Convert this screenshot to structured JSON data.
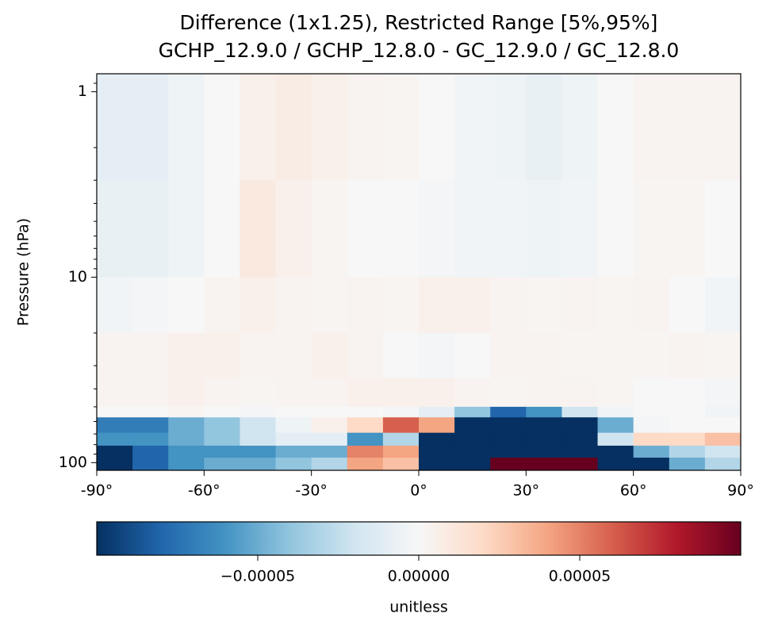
{
  "chart_data": {
    "type": "heatmap",
    "title": "Difference (1x1.25), Restricted Range [5%,95%]",
    "subtitle": "GCHP_12.9.0 / GCHP_12.8.0 - GC_12.9.0 / GC_12.8.0",
    "y_label": "Pressure (hPa)",
    "colorbar_label": "unitless",
    "colormap": "RdBu_r",
    "x_edges": [
      -90,
      -80,
      -70,
      -60,
      -50,
      -40,
      -30,
      -20,
      -10,
      0,
      10,
      20,
      30,
      40,
      50,
      60,
      70,
      80,
      90
    ],
    "y_edges": [
      0.8,
      3,
      10,
      20,
      35,
      50,
      57,
      69,
      81,
      94,
      110
    ],
    "xlim": [
      -90,
      90
    ],
    "ylim": [
      110,
      0.8
    ],
    "y_log": true,
    "xticks": [
      {
        "value": -90,
        "label": "-90°"
      },
      {
        "value": -60,
        "label": "-60°"
      },
      {
        "value": -30,
        "label": "-30°"
      },
      {
        "value": 0,
        "label": "0°"
      },
      {
        "value": 30,
        "label": "30°"
      },
      {
        "value": 60,
        "label": "60°"
      },
      {
        "value": 90,
        "label": "90°"
      }
    ],
    "yticks": [
      1,
      10,
      100
    ],
    "yminorticks": [
      0.9,
      2,
      3,
      4,
      5,
      6,
      7,
      8,
      9,
      20,
      30,
      40,
      50,
      60,
      70,
      80,
      90
    ],
    "clim": [
      -0.0001,
      0.0001
    ],
    "cticks": [
      {
        "value": -5e-05,
        "label": "−0.00005"
      },
      {
        "value": 0,
        "label": "0.00000"
      },
      {
        "value": 5e-05,
        "label": "0.00005"
      }
    ],
    "values": [
      [
        -1e-05,
        -1e-05,
        -5e-06,
        0,
        5e-06,
        8e-06,
        5e-06,
        3e-06,
        2e-06,
        0,
        -3e-06,
        -5e-06,
        -8e-06,
        -5e-06,
        0,
        3e-06,
        3e-06,
        3e-06
      ],
      [
        -8e-06,
        -8e-06,
        -5e-06,
        0,
        1e-05,
        5e-06,
        2e-06,
        0,
        0,
        -2e-06,
        -3e-06,
        -3e-06,
        -5e-06,
        -3e-06,
        0,
        2e-06,
        2e-06,
        0
      ],
      [
        -3e-06,
        -2e-06,
        0,
        3e-06,
        5e-06,
        3e-06,
        2e-06,
        3e-06,
        2e-06,
        5e-06,
        5e-06,
        3e-06,
        2e-06,
        3e-06,
        2e-06,
        3e-06,
        0,
        -3e-06
      ],
      [
        3e-06,
        3e-06,
        5e-06,
        5e-06,
        3e-06,
        3e-06,
        5e-06,
        3e-06,
        0,
        -2e-06,
        0,
        3e-06,
        3e-06,
        2e-06,
        2e-06,
        2e-06,
        3e-06,
        2e-06
      ],
      [
        3e-06,
        3e-06,
        5e-06,
        3e-06,
        2e-06,
        3e-06,
        3e-06,
        5e-06,
        5e-06,
        5e-06,
        3e-06,
        2e-06,
        3e-06,
        3e-06,
        2e-06,
        0,
        0,
        -2e-06
      ],
      [
        0,
        0,
        2e-06,
        0,
        -2e-06,
        0,
        0,
        0,
        -2e-06,
        -1e-05,
        -4e-05,
        -8e-05,
        -6e-05,
        -2e-05,
        -3e-06,
        0,
        0,
        -3e-06
      ],
      [
        -7e-05,
        -7e-05,
        -5e-05,
        -4e-05,
        -2e-05,
        -5e-06,
        5e-06,
        2e-05,
        6e-05,
        4e-05,
        -0.0001,
        -0.0001,
        -0.0001,
        -0.0001,
        -5e-05,
        -2e-06,
        0,
        0
      ],
      [
        -6e-05,
        -6e-05,
        -5e-05,
        -4e-05,
        -2e-05,
        -1e-05,
        -1e-05,
        -6e-05,
        -3e-05,
        -0.0001,
        -0.0001,
        -0.0001,
        -0.0001,
        -0.0001,
        -2e-05,
        2e-05,
        2e-05,
        3e-05
      ],
      [
        -0.0001,
        -8e-05,
        -6e-05,
        -6e-05,
        -6e-05,
        -5e-05,
        -5e-05,
        5e-05,
        4e-05,
        -0.0001,
        -0.0001,
        -0.0001,
        -0.0001,
        -0.0001,
        -0.0001,
        -5e-05,
        -3e-05,
        -2e-05
      ],
      [
        -0.0001,
        -8e-05,
        -6e-05,
        -5e-05,
        -5e-05,
        -4e-05,
        -3e-05,
        4e-05,
        3e-05,
        -0.0001,
        -0.0001,
        0.0001,
        0.0001,
        0.0001,
        -0.0001,
        -0.0001,
        -5e-05,
        -3e-05
      ]
    ]
  }
}
